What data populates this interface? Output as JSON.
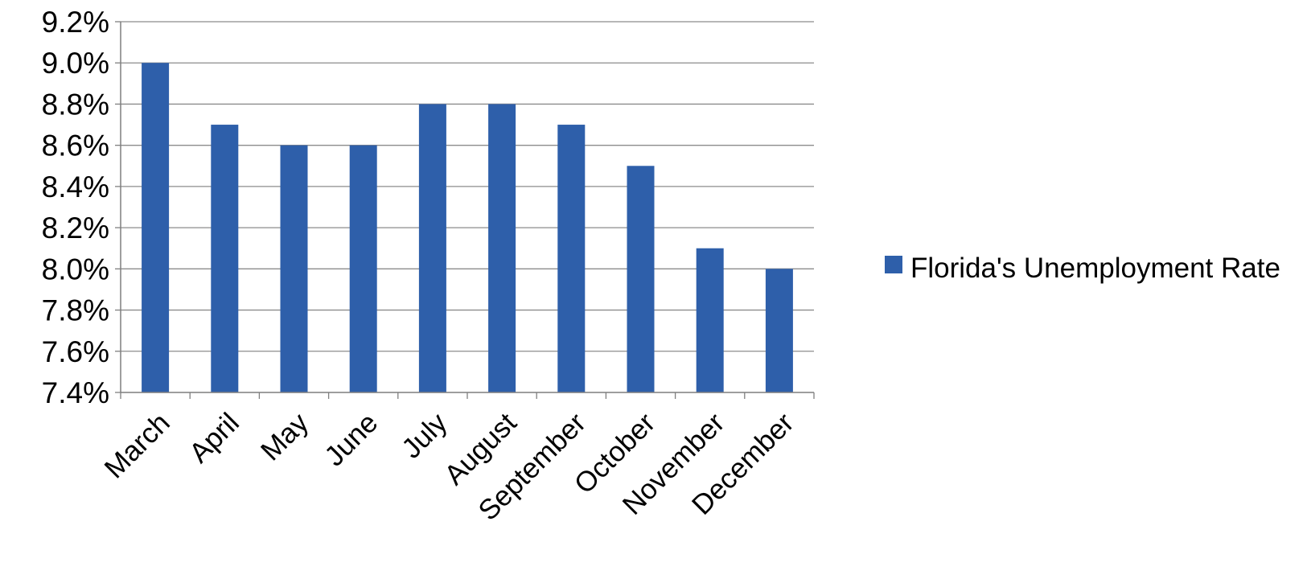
{
  "chart_data": {
    "type": "bar",
    "title": "",
    "xlabel": "",
    "ylabel": "",
    "categories": [
      "March",
      "April",
      "May",
      "June",
      "July",
      "August",
      "September",
      "October",
      "November",
      "December"
    ],
    "series": [
      {
        "name": "Florida's Unemployment Rate",
        "values": [
          9.0,
          8.7,
          8.6,
          8.6,
          8.8,
          8.8,
          8.7,
          8.5,
          8.1,
          8.0
        ]
      }
    ],
    "ylim": [
      7.4,
      9.2
    ],
    "yticks": [
      7.4,
      7.6,
      7.8,
      8.0,
      8.2,
      8.4,
      8.6,
      8.8,
      9.0,
      9.2
    ],
    "ytick_labels": [
      "7.4%",
      "7.6%",
      "7.8%",
      "8.0%",
      "8.2%",
      "8.4%",
      "8.6%",
      "8.8%",
      "9.0%",
      "9.2%"
    ],
    "grid": true,
    "legend_position": "right",
    "colors": {
      "bar": "#2E5FAA",
      "grid": "#8C8C8C",
      "axis": "#7F7F7F",
      "text": "#000000"
    }
  }
}
